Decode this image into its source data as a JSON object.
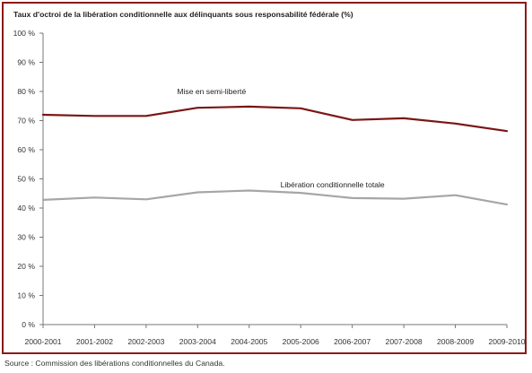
{
  "chart_data": {
    "type": "line",
    "title": "Taux d'octroi de la libération conditionnelle aux délinquants sous responsabilité fédérale (%)",
    "categories": [
      "2000-2001",
      "2001-2002",
      "2002-2003",
      "2003-2004",
      "2004-2005",
      "2005-2006",
      "2006-2007",
      "2007-2008",
      "2008-2009",
      "2009-2010"
    ],
    "ylim": [
      0,
      100
    ],
    "yticks": [
      0,
      10,
      20,
      30,
      40,
      50,
      60,
      70,
      80,
      90,
      100
    ],
    "ytick_labels": [
      "0 %",
      "10 %",
      "20 %",
      "30 %",
      "40 %",
      "50 %",
      "60 %",
      "70 %",
      "80 %",
      "90 %",
      "100 %"
    ],
    "series": [
      {
        "name": "Mise en semi-liberté",
        "color": "#7b1515",
        "values": [
          72,
          71.6,
          71.6,
          74.4,
          74.8,
          74.2,
          70.2,
          70.8,
          69,
          66.4
        ]
      },
      {
        "name": "Libération conditionnelle totale",
        "color": "#a6a6a6",
        "values": [
          42.8,
          43.6,
          43.0,
          45.4,
          46.0,
          45.2,
          43.4,
          43.2,
          44.4,
          41.2
        ]
      }
    ],
    "grid": false,
    "legend": "inline-labels"
  },
  "source": "Source : Commission des libérations conditionnelles du Canada."
}
